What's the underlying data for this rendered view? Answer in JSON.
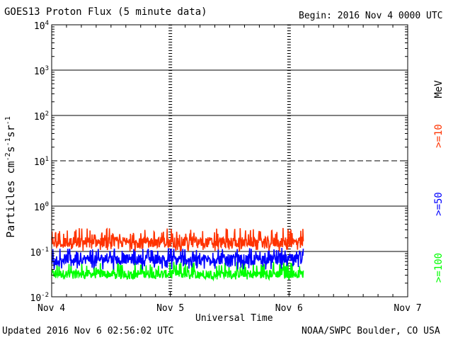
{
  "header": {
    "title": "GOES13 Proton Flux (5 minute data)",
    "begin": "Begin: 2016 Nov 4 0000 UTC"
  },
  "footer": {
    "updated": "Updated 2016 Nov  6 02:56:02 UTC",
    "credit": "NOAA/SWPC Boulder, CO USA"
  },
  "colors": {
    "ge10": "#ff3300",
    "ge50": "#0000ff",
    "ge100": "#00ff00",
    "mev": "#000000"
  },
  "chart_data": {
    "type": "line",
    "title": "GOES13 Proton Flux (5 minute data)",
    "xlabel": "Universal Time",
    "ylabel": "Particles cm⁻²s⁻¹sr⁻¹",
    "yscale": "log",
    "ylim": [
      0.01,
      10000
    ],
    "xlim": [
      0,
      3
    ],
    "x_ticks": [
      {
        "value": 0,
        "label": "Nov 4"
      },
      {
        "value": 1,
        "label": "Nov 5"
      },
      {
        "value": 2,
        "label": "Nov 6"
      },
      {
        "value": 3,
        "label": "Nov 7"
      }
    ],
    "y_ticks": [
      {
        "value": 0.01,
        "base": "10",
        "exp": "-2"
      },
      {
        "value": 0.1,
        "base": "10",
        "exp": "-1"
      },
      {
        "value": 1,
        "base": "10",
        "exp": "0"
      },
      {
        "value": 10,
        "base": "10",
        "exp": "1"
      },
      {
        "value": 100,
        "base": "10",
        "exp": "2"
      },
      {
        "value": 1000,
        "base": "10",
        "exp": "3"
      },
      {
        "value": 10000,
        "base": "10",
        "exp": "4"
      }
    ],
    "threshold_line": {
      "value": 10,
      "style": "dashed"
    },
    "data_end_day": 2.12,
    "legend": [
      {
        "label": ">=10",
        "color": "#ff3300"
      },
      {
        "label": ">=50",
        "color": "#0000ff"
      },
      {
        "label": ">=100",
        "color": "#00ff00"
      },
      {
        "label": "MeV",
        "color": "#000000"
      }
    ],
    "series": [
      {
        "name": ">=10 MeV",
        "color": "#ff3300",
        "typical": 0.16,
        "min": 0.1,
        "max": 0.33
      },
      {
        "name": ">=50 MeV",
        "color": "#0000ff",
        "typical": 0.068,
        "min": 0.04,
        "max": 0.12
      },
      {
        "name": ">=100 MeV",
        "color": "#00ff00",
        "typical": 0.032,
        "min": 0.024,
        "max": 0.06
      }
    ]
  }
}
